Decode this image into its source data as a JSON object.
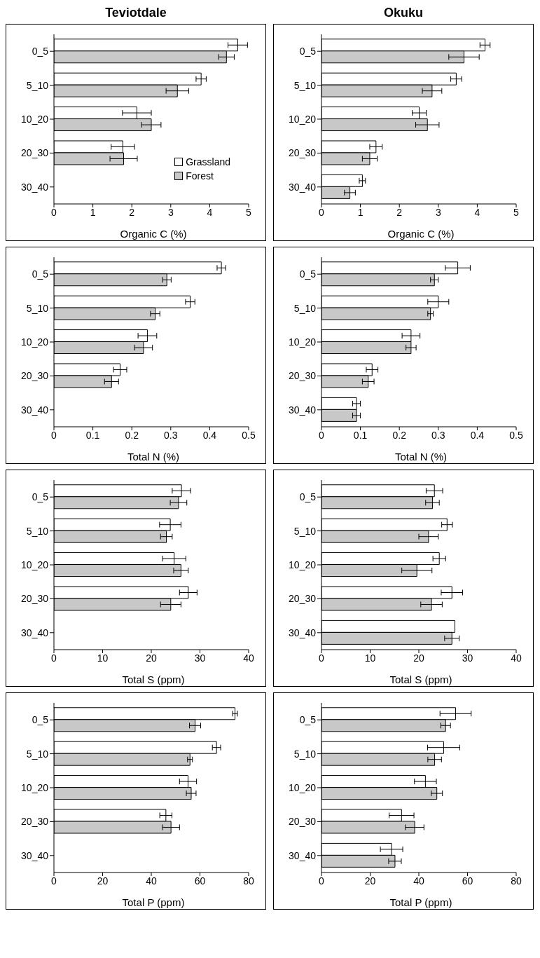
{
  "chart_data": [
    {
      "type": "bar",
      "title": "Teviotdale",
      "orientation": "horizontal",
      "xlabel": "Organic C (%)",
      "categories": [
        "0_5",
        "5_10",
        "10_20",
        "20_30",
        "30_40"
      ],
      "xlim": [
        0,
        5
      ],
      "xticks": [
        0,
        1,
        2,
        3,
        4,
        5
      ],
      "grid": false,
      "legend": "bottom right",
      "series": [
        {
          "name": "Grassland",
          "color": "#ffffff",
          "values": [
            4.72,
            3.78,
            2.13,
            1.77,
            null
          ],
          "errors": [
            0.25,
            0.13,
            0.37,
            0.3,
            null
          ]
        },
        {
          "name": "Forest",
          "color": "#c8c8c8",
          "values": [
            4.43,
            3.17,
            2.5,
            1.79,
            null
          ],
          "errors": [
            0.2,
            0.29,
            0.25,
            0.35,
            null
          ]
        }
      ]
    },
    {
      "type": "bar",
      "title": "Okuku",
      "orientation": "horizontal",
      "xlabel": "Organic C (%)",
      "categories": [
        "0_5",
        "5_10",
        "10_20",
        "20_30",
        "30_40"
      ],
      "xlim": [
        0,
        5
      ],
      "xticks": [
        0,
        1,
        2,
        3,
        4,
        5
      ],
      "grid": false,
      "series": [
        {
          "color": "#ffffff",
          "values": [
            4.2,
            3.46,
            2.51,
            1.4,
            1.05
          ],
          "errors": [
            0.13,
            0.14,
            0.18,
            0.16,
            0.08
          ]
        },
        {
          "color": "#c8c8c8",
          "values": [
            3.66,
            2.84,
            2.72,
            1.24,
            0.73
          ],
          "errors": [
            0.39,
            0.25,
            0.3,
            0.19,
            0.14
          ]
        }
      ]
    },
    {
      "type": "bar",
      "orientation": "horizontal",
      "xlabel": "Total N (%)",
      "categories": [
        "0_5",
        "5_10",
        "10_20",
        "20_30",
        "30_40"
      ],
      "xlim": [
        0,
        0.5
      ],
      "xticks": [
        0,
        0.1,
        0.2,
        0.3,
        0.4,
        0.5
      ],
      "grid": false,
      "series": [
        {
          "color": "#ffffff",
          "values": [
            0.43,
            0.35,
            0.24,
            0.17,
            null
          ],
          "errors": [
            0.011,
            0.012,
            0.024,
            0.017,
            null
          ]
        },
        {
          "color": "#c8c8c8",
          "values": [
            0.29,
            0.26,
            0.23,
            0.148,
            null
          ],
          "errors": [
            0.011,
            0.012,
            0.023,
            0.018,
            null
          ]
        }
      ]
    },
    {
      "type": "bar",
      "orientation": "horizontal",
      "xlabel": "Total N (%)",
      "categories": [
        "0_5",
        "5_10",
        "10_20",
        "20_30",
        "30_40"
      ],
      "xlim": [
        0,
        0.5
      ],
      "xticks": [
        0,
        0.1,
        0.2,
        0.3,
        0.4,
        0.5
      ],
      "grid": false,
      "series": [
        {
          "color": "#ffffff",
          "values": [
            0.35,
            0.3,
            0.23,
            0.13,
            0.09
          ],
          "errors": [
            0.032,
            0.027,
            0.023,
            0.015,
            0.01
          ]
        },
        {
          "color": "#c8c8c8",
          "values": [
            0.29,
            0.28,
            0.23,
            0.12,
            0.09
          ],
          "errors": [
            0.01,
            0.007,
            0.013,
            0.015,
            0.01
          ]
        }
      ]
    },
    {
      "type": "bar",
      "orientation": "horizontal",
      "xlabel": "Total S (ppm)",
      "categories": [
        "0_5",
        "5_10",
        "10_20",
        "20_30",
        "30_40"
      ],
      "xlim": [
        0,
        40
      ],
      "xticks": [
        0,
        10,
        20,
        30,
        40
      ],
      "grid": false,
      "series": [
        {
          "color": "#ffffff",
          "values": [
            26.2,
            23.9,
            24.7,
            27.6,
            null
          ],
          "errors": [
            1.9,
            2.2,
            2.4,
            1.8,
            null
          ]
        },
        {
          "color": "#c8c8c8",
          "values": [
            25.6,
            23.1,
            26.1,
            24.0,
            null
          ],
          "errors": [
            1.7,
            1.2,
            1.5,
            2.1,
            null
          ]
        }
      ]
    },
    {
      "type": "bar",
      "orientation": "horizontal",
      "xlabel": "Total S (ppm)",
      "categories": [
        "0_5",
        "5_10",
        "10_20",
        "20_30",
        "30_40"
      ],
      "xlim": [
        0,
        40
      ],
      "xticks": [
        0,
        10,
        20,
        30,
        40
      ],
      "grid": false,
      "series": [
        {
          "color": "#ffffff",
          "values": [
            23.2,
            25.8,
            24.2,
            26.8,
            27.4
          ],
          "errors": [
            1.7,
            1.1,
            1.3,
            2.2,
            null
          ]
        },
        {
          "color": "#c8c8c8",
          "values": [
            22.8,
            22.0,
            19.6,
            22.6,
            26.8
          ],
          "errors": [
            1.4,
            2.0,
            3.1,
            2.2,
            1.5
          ]
        }
      ]
    },
    {
      "type": "bar",
      "orientation": "horizontal",
      "xlabel": "Total P (ppm)",
      "categories": [
        "0_5",
        "5_10",
        "10_20",
        "20_30",
        "30_40"
      ],
      "xlim": [
        0,
        80
      ],
      "xticks": [
        0,
        20,
        40,
        60,
        80
      ],
      "grid": false,
      "series": [
        {
          "color": "#ffffff",
          "values": [
            74.4,
            66.8,
            55.1,
            46.0,
            null
          ],
          "errors": [
            1,
            1.7,
            3.5,
            2.5,
            null
          ]
        },
        {
          "color": "#c8c8c8",
          "values": [
            58.0,
            55.9,
            56.4,
            48.1,
            null
          ],
          "errors": [
            2.3,
            1,
            2,
            3.5,
            null
          ]
        }
      ]
    },
    {
      "type": "bar",
      "orientation": "horizontal",
      "xlabel": "Total P (ppm)",
      "categories": [
        "0_5",
        "5_10",
        "10_20",
        "20_30",
        "30_40"
      ],
      "xlim": [
        0,
        80
      ],
      "xticks": [
        0,
        20,
        40,
        60,
        80
      ],
      "grid": false,
      "series": [
        {
          "color": "#ffffff",
          "values": [
            55.1,
            50.2,
            42.7,
            32.9,
            28.8
          ],
          "errors": [
            6.4,
            6.6,
            4.5,
            5.1,
            4.6
          ]
        },
        {
          "color": "#c8c8c8",
          "values": [
            51.0,
            46.5,
            47.4,
            38.3,
            30.2
          ],
          "errors": [
            2,
            2.8,
            2.3,
            3.8,
            2.6
          ]
        }
      ]
    }
  ]
}
